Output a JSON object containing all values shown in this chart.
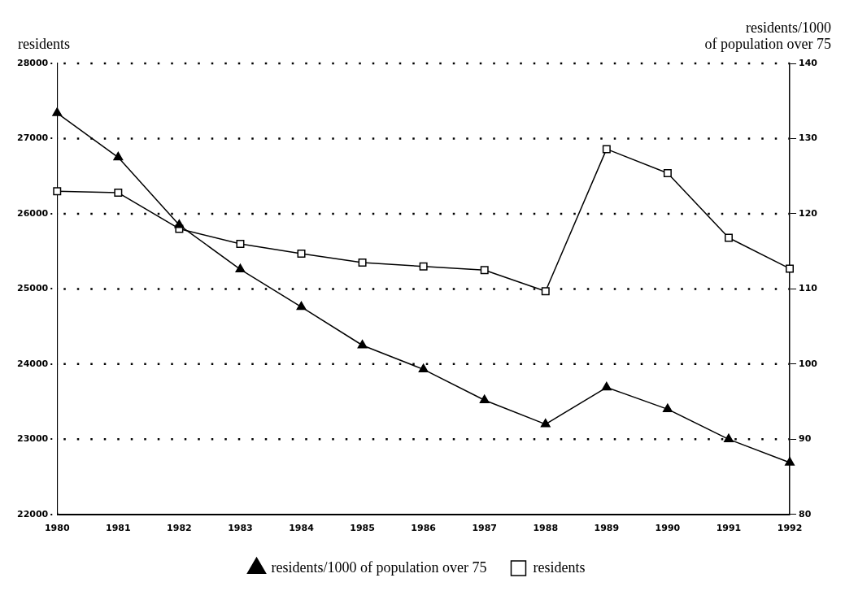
{
  "chart_data": {
    "type": "line",
    "ylabel": "residents",
    "y2label": "residents/1000\nof population over 75",
    "categories": [
      "1980",
      "1981",
      "1982",
      "1983",
      "1984",
      "1985",
      "1986",
      "1987",
      "1988",
      "1989",
      "1990",
      "1991",
      "1992"
    ],
    "series": [
      {
        "name": "residents",
        "color": "#000000",
        "marker": "square",
        "values": [
          26300,
          26280,
          25800,
          25600,
          25470,
          25350,
          25300,
          25250,
          24970,
          26860,
          26540,
          25680,
          25270
        ]
      },
      {
        "name": "residents/1000 of population over 75",
        "color": "#000000",
        "marker": "triangle",
        "axis": "y2",
        "values": [
          133.4,
          127.5,
          118.5,
          112.6,
          107.6,
          102.5,
          99.3,
          95.2,
          92,
          96.9,
          94,
          90,
          86.9
        ]
      }
    ],
    "ylim": [
      22000,
      28000
    ],
    "yticks": [
      22000,
      23000,
      24000,
      25000,
      26000,
      27000,
      28000
    ],
    "y2lim": [
      80,
      140
    ],
    "y2ticks": [
      80,
      90,
      100,
      110,
      120,
      130,
      140
    ],
    "grid": "y",
    "legend": "bottom",
    "line_style": "solid"
  }
}
